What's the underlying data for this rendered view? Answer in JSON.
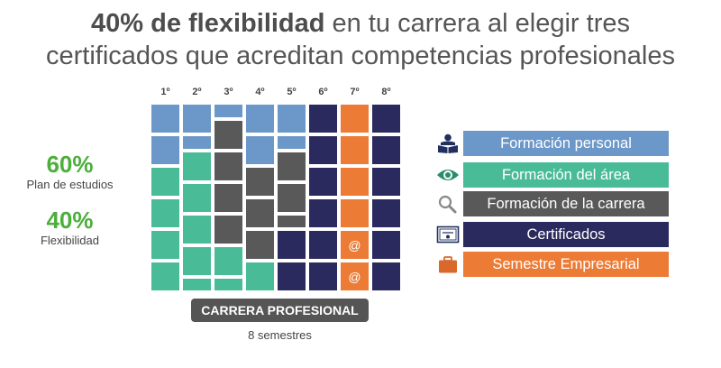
{
  "title": {
    "bold": "40% de flexibilidad",
    "rest_line1": " en tu carrera al elegir tres",
    "line2": "certificados que acreditan competencias profesionales"
  },
  "stats": [
    {
      "value": "60%",
      "label": "Plan de estudios"
    },
    {
      "value": "40%",
      "label": "Flexibilidad"
    }
  ],
  "grid": {
    "columns": [
      "1º",
      "2º",
      "3º",
      "4º",
      "5º",
      "6º",
      "7º",
      "8º"
    ],
    "rows": 6,
    "marker": "@",
    "composition": [
      [
        {
          "c": "personal",
          "n": 2
        },
        {
          "c": "area",
          "n": 4
        }
      ],
      [
        {
          "c": "personal",
          "n": 1.5
        },
        {
          "c": "area",
          "n": 4.5
        }
      ],
      [
        {
          "c": "personal",
          "n": 0.5
        },
        {
          "c": "carrera",
          "n": 4
        },
        {
          "c": "area",
          "n": 1.5
        }
      ],
      [
        {
          "c": "personal",
          "n": 2
        },
        {
          "c": "carrera",
          "n": 3
        },
        {
          "c": "area",
          "n": 1
        }
      ],
      [
        {
          "c": "personal",
          "n": 1.5
        },
        {
          "c": "carrera",
          "n": 2.5
        },
        {
          "c": "certificados",
          "n": 2
        }
      ],
      [
        {
          "c": "certificados",
          "n": 6
        }
      ],
      [
        {
          "c": "empresarial",
          "n": 4
        },
        {
          "c": "empresarial_marked",
          "n": 2
        }
      ],
      [
        {
          "c": "certificados",
          "n": 6
        }
      ]
    ]
  },
  "colors": {
    "personal": "#6c97c9",
    "area": "#49bb97",
    "carrera": "#595959",
    "certificados": "#2b2a5e",
    "empresarial": "#ec7b35",
    "empresarial_marked": "#ec7b35",
    "icon_green": "#2a8c6e",
    "icon_navy": "#22305f",
    "icon_orange": "#d9692b",
    "icon_gray": "#888888"
  },
  "legend": [
    {
      "key": "personal",
      "label": "Formación personal",
      "icon": "reader-icon"
    },
    {
      "key": "area",
      "label": "Formación del área",
      "icon": "eye-icon"
    },
    {
      "key": "carrera",
      "label": "Formación de la carrera",
      "icon": "magnifier-icon"
    },
    {
      "key": "certificados",
      "label": "Certificados",
      "icon": "certificate-icon"
    },
    {
      "key": "empresarial",
      "label": "Semestre Empresarial",
      "icon": "briefcase-icon"
    }
  ],
  "footer": {
    "badge": "CARRERA PROFESIONAL",
    "subtitle": "8 semestres"
  }
}
